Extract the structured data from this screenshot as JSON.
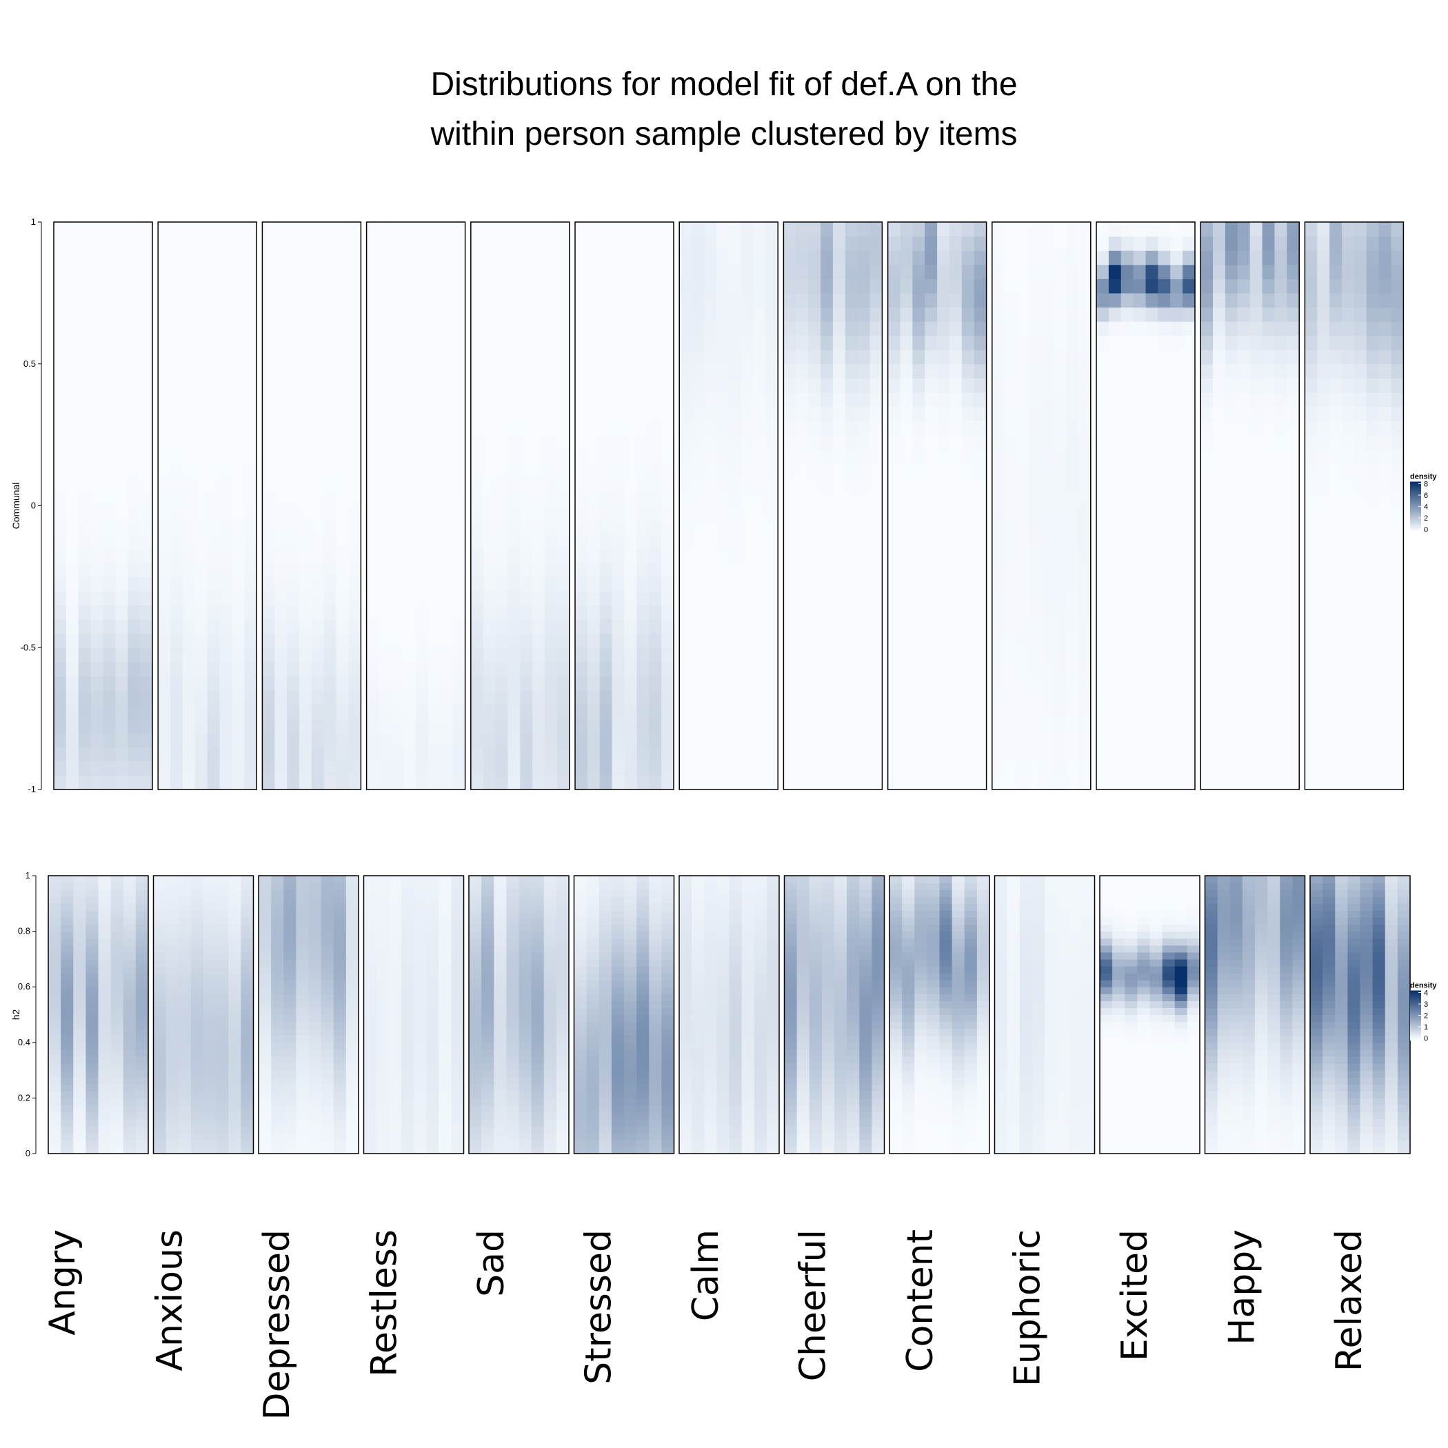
{
  "title_line1": "Distributions for model fit of def.A on the",
  "title_line2": "within person sample clustered by items",
  "chart_data": [
    {
      "type": "heatmap",
      "ylabel": "Communal",
      "ylim": [
        -1,
        1
      ],
      "yticks": [
        "1",
        "0.5",
        "0",
        "-0.5",
        "-1"
      ],
      "legend": {
        "title": "density",
        "ticks": [
          "8",
          "6",
          "4",
          "2",
          "0"
        ],
        "max": 8
      },
      "panels": [
        {
          "item": "Angry",
          "cols": 8,
          "peak": -0.78,
          "spread": 0.25,
          "strength": 1.6
        },
        {
          "item": "Anxious",
          "cols": 8,
          "peak": -0.85,
          "spread": 0.35,
          "strength": 1.0
        },
        {
          "item": "Depressed",
          "cols": 8,
          "peak": -0.85,
          "spread": 0.3,
          "strength": 1.3
        },
        {
          "item": "Restless",
          "cols": 8,
          "peak": -0.9,
          "spread": 0.2,
          "strength": 0.4
        },
        {
          "item": "Sad",
          "cols": 8,
          "peak": -0.8,
          "spread": 0.35,
          "strength": 1.2
        },
        {
          "item": "Stressed",
          "cols": 8,
          "peak": -0.8,
          "spread": 0.35,
          "strength": 1.8
        },
        {
          "item": "Calm",
          "cols": 8,
          "peak": 0.75,
          "spread": 0.35,
          "strength": 0.5
        },
        {
          "item": "Cheerful",
          "cols": 8,
          "peak": 0.85,
          "spread": 0.25,
          "strength": 2.4
        },
        {
          "item": "Content",
          "cols": 8,
          "peak": 0.82,
          "spread": 0.2,
          "strength": 3.0
        },
        {
          "item": "Euphoric",
          "cols": 8,
          "peak": 0.0,
          "spread": 0.5,
          "strength": 0.2
        },
        {
          "item": "Excited",
          "cols": 8,
          "peak": 0.78,
          "spread": 0.06,
          "strength": 8.0
        },
        {
          "item": "Happy",
          "cols": 8,
          "peak": 0.88,
          "spread": 0.2,
          "strength": 3.2
        },
        {
          "item": "Relaxed",
          "cols": 8,
          "peak": 0.85,
          "spread": 0.25,
          "strength": 3.0
        }
      ]
    },
    {
      "type": "heatmap",
      "ylabel": "h2",
      "ylim": [
        0,
        1
      ],
      "yticks": [
        "1",
        "0.8",
        "0.6",
        "0.4",
        "0.2",
        "0"
      ],
      "legend": {
        "title": "density",
        "ticks": [
          "4",
          "3",
          "2",
          "1",
          "0"
        ],
        "max": 4
      },
      "panels": [
        {
          "item": "Angry",
          "cols": 8,
          "peak": 0.55,
          "spread": 0.3,
          "strength": 1.5
        },
        {
          "item": "Anxious",
          "cols": 8,
          "peak": 0.35,
          "spread": 0.35,
          "strength": 1.1
        },
        {
          "item": "Depressed",
          "cols": 8,
          "peak": 0.8,
          "spread": 0.35,
          "strength": 1.4
        },
        {
          "item": "Restless",
          "cols": 8,
          "peak": 0.5,
          "spread": 0.5,
          "strength": 0.3
        },
        {
          "item": "Sad",
          "cols": 8,
          "peak": 0.55,
          "spread": 0.35,
          "strength": 1.3
        },
        {
          "item": "Stressed",
          "cols": 8,
          "peak": 0.3,
          "spread": 0.35,
          "strength": 1.8
        },
        {
          "item": "Calm",
          "cols": 8,
          "peak": 0.5,
          "spread": 0.4,
          "strength": 0.6
        },
        {
          "item": "Cheerful",
          "cols": 8,
          "peak": 0.6,
          "spread": 0.35,
          "strength": 1.7
        },
        {
          "item": "Content",
          "cols": 8,
          "peak": 0.7,
          "spread": 0.2,
          "strength": 2.0
        },
        {
          "item": "Euphoric",
          "cols": 8,
          "peak": 0.5,
          "spread": 0.5,
          "strength": 0.3
        },
        {
          "item": "Excited",
          "cols": 8,
          "peak": 0.65,
          "spread": 0.07,
          "strength": 4.0
        },
        {
          "item": "Happy",
          "cols": 8,
          "peak": 0.82,
          "spread": 0.3,
          "strength": 2.2
        },
        {
          "item": "Relaxed",
          "cols": 8,
          "peak": 0.65,
          "spread": 0.3,
          "strength": 2.4
        }
      ]
    }
  ],
  "items": [
    "Angry",
    "Anxious",
    "Depressed",
    "Restless",
    "Sad",
    "Stressed",
    "Calm",
    "Cheerful",
    "Content",
    "Euphoric",
    "Excited",
    "Happy",
    "Relaxed"
  ],
  "colors": {
    "low": "#f7fbff",
    "high": "#08306b",
    "frame": "#000000"
  }
}
